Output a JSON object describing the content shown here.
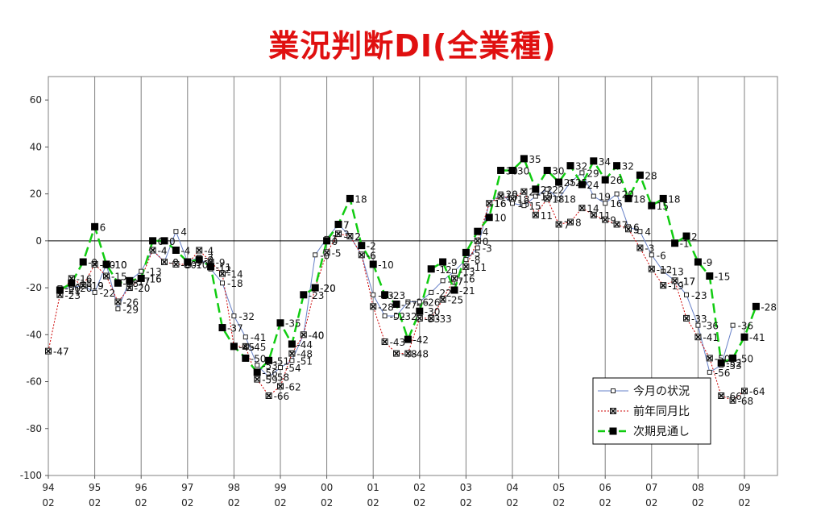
{
  "title": "業況判断DI(全業種)",
  "chart_data": {
    "type": "line",
    "title": "業況判断DI(全業種)",
    "ylim": [
      -100,
      70
    ],
    "yticks": [
      -100,
      -80,
      -60,
      -40,
      -20,
      0,
      20,
      40,
      60
    ],
    "xticks": [
      [
        "94",
        "02"
      ],
      [
        "95",
        "02"
      ],
      [
        "96",
        "02"
      ],
      [
        "97",
        "02"
      ],
      [
        "98",
        "02"
      ],
      [
        "99",
        "02"
      ],
      [
        "00",
        "02"
      ],
      [
        "01",
        "02"
      ],
      [
        "02",
        "02"
      ],
      [
        "03",
        "02"
      ],
      [
        "04",
        "02"
      ],
      [
        "05",
        "02"
      ],
      [
        "06",
        "02"
      ],
      [
        "07",
        "02"
      ],
      [
        "08",
        "02"
      ],
      [
        "09",
        "02"
      ]
    ],
    "x_start": "1994-02",
    "x_step_months": 3,
    "grid": true,
    "legend_position": "bottom-right",
    "series": [
      {
        "name": "今月の状況",
        "color": "#6680c8",
        "marker": "open-square",
        "values": [
          null,
          -20,
          -20,
          -19,
          -22,
          -10,
          -29,
          -17,
          -13,
          -4,
          -9,
          4,
          -9,
          -7,
          -12,
          -18,
          -32,
          -41,
          -53,
          -58,
          -54,
          -51,
          -40,
          -6,
          1,
          7,
          2,
          -6,
          -23,
          -32,
          -32,
          -26,
          -26,
          -22,
          -17,
          -13,
          -8,
          -3,
          16,
          20,
          16,
          15,
          19,
          22,
          18,
          25,
          29,
          19,
          16,
          20,
          6,
          4,
          -6,
          -13,
          -17,
          -23,
          -36,
          -56,
          -53,
          -36
        ]
      },
      {
        "name": "前年同月比",
        "color": "#cc0000",
        "marker": "x-square",
        "values": [
          -47,
          -23,
          -16,
          -19,
          -10,
          -15,
          -26,
          -20,
          -16,
          -4,
          -9,
          -10,
          -10,
          -4,
          -9,
          -14,
          -45,
          -45,
          -59,
          -66,
          -62,
          -48,
          -40,
          -20,
          -5,
          3,
          2,
          -6,
          -28,
          -43,
          -48,
          -48,
          -33,
          -33,
          -25,
          -16,
          -11,
          0,
          16,
          19,
          18,
          21,
          11,
          18,
          7,
          8,
          14,
          11,
          9,
          7,
          5,
          -3,
          -12,
          -19,
          -17,
          -33,
          -41,
          -50,
          -66,
          -68,
          -64
        ]
      },
      {
        "name": "次期見通し",
        "color": "#11cc11",
        "marker": "filled-square",
        "values": [
          null,
          -21,
          -18,
          -9,
          6,
          -10,
          -18,
          -17,
          -16,
          0,
          0,
          -4,
          -9,
          -8,
          -11,
          -37,
          -45,
          -50,
          -56,
          -51,
          -35,
          -44,
          -23,
          -20,
          0,
          7,
          18,
          -2,
          -10,
          -23,
          -27,
          -42,
          -30,
          -12,
          -9,
          -21,
          -5,
          4,
          10,
          30,
          30,
          35,
          22,
          30,
          25,
          32,
          24,
          34,
          26,
          32,
          18,
          28,
          15,
          18,
          -1,
          2,
          -9,
          -15,
          -52,
          -50,
          -41,
          -28
        ]
      }
    ],
    "data_labels": {
      "今月の状況": [
        "",
        "-20",
        "-20",
        "-19",
        "-22",
        "-10",
        "-29",
        "-17",
        "-13",
        "-4",
        "-9",
        "4",
        "-9",
        "-7",
        "-12",
        "-18",
        "-32",
        "-41",
        "-53",
        "-58",
        "-54",
        "-51",
        "-40",
        "-6",
        "1",
        "7",
        "2",
        "-6",
        "-23",
        "-32",
        "-32",
        "-26",
        "-26",
        "-22",
        "-17",
        "-13",
        "-8",
        "-3",
        "16",
        "20",
        "16",
        "15",
        "19",
        "22",
        "18",
        "25",
        "29",
        "19",
        "16",
        "20",
        "6",
        "4",
        "-6",
        "-13",
        "-17",
        "-23",
        "-36",
        "-56",
        "-53",
        "-36"
      ],
      "前年同月比": [
        "-47",
        "-23",
        "-16",
        "-19",
        "-10",
        "-15",
        "-26",
        "-20",
        "-16",
        "-4",
        "-9",
        "-10",
        "-10",
        "-4",
        "-9",
        "-14",
        "-45",
        "-45",
        "-59",
        "-66",
        "-62",
        "-48",
        "-40",
        "-20",
        "-5",
        "3",
        "2",
        "-6",
        "-28",
        "-43",
        "-48",
        "-48",
        "-33",
        "-33",
        "-25",
        "-16",
        "-11",
        "0",
        "16",
        "19",
        "18",
        "21",
        "11",
        "18",
        "7",
        "8",
        "14",
        "11",
        "9",
        "7",
        "5",
        "-3",
        "-12",
        "-19",
        "-17",
        "-33",
        "-41",
        "-50",
        "-66",
        "-68",
        "-64"
      ],
      "次期見通し": [
        "",
        "-21",
        "-18",
        "-9",
        "6",
        "-10",
        "-18",
        "-17",
        "-16",
        "0",
        "0",
        "-4",
        "-9",
        "-8",
        "-11",
        "-37",
        "-45",
        "-50",
        "-56",
        "-51",
        "-35",
        "-44",
        "-23",
        "-20",
        "0",
        "7",
        "18",
        "-2",
        "-10",
        "-23",
        "-27",
        "-42",
        "-30",
        "-12",
        "-9",
        "-21",
        "-5",
        "4",
        "10",
        "30",
        "30",
        "35",
        "22",
        "30",
        "25",
        "32",
        "24",
        "34",
        "26",
        "32",
        "18",
        "28",
        "15",
        "18",
        "-1",
        "2",
        "-9",
        "-15",
        "-52",
        "-50",
        "-41",
        "-28"
      ]
    }
  }
}
